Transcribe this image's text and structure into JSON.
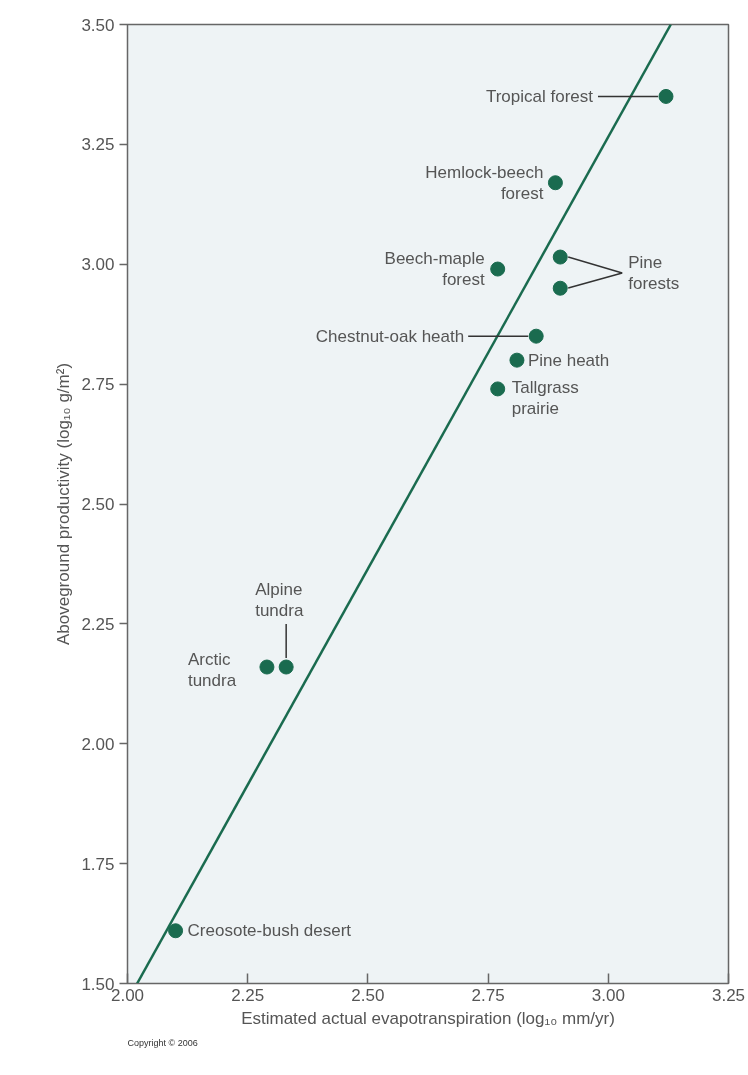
{
  "chart_data": {
    "type": "scatter",
    "xlabel": "Estimated actual evapotranspiration (log₁₀ mm/yr)",
    "ylabel": "Aboveground productivity (log₁₀ g/m²)",
    "xlim": [
      2.0,
      3.25
    ],
    "ylim": [
      1.5,
      3.5
    ],
    "xticks": [
      {
        "value": 2.0,
        "label": "2.00"
      },
      2.25,
      {
        "value": 2.5,
        "label": "2.50"
      },
      2.75,
      {
        "value": 3.0,
        "label": "3.00"
      },
      3.25
    ],
    "yticks": [
      {
        "value": 1.5,
        "label": "1.50"
      },
      1.75,
      {
        "value": 2.0,
        "label": "2.00"
      },
      2.25,
      {
        "value": 2.5,
        "label": "2.50"
      },
      2.75,
      {
        "value": 3.0,
        "label": "3.00"
      },
      3.25,
      {
        "value": 3.5,
        "label": "3.50"
      }
    ],
    "grid": false,
    "series": [
      {
        "marker": "circle",
        "color": "#1a6b4f",
        "x": [
          3.12,
          2.89,
          2.77,
          2.9,
          2.9,
          2.85,
          2.81,
          2.77,
          2.33,
          2.29,
          2.1
        ],
        "values": [
          3.35,
          3.17,
          2.99,
          3.015,
          2.95,
          2.85,
          2.8,
          2.74,
          2.16,
          2.16,
          1.61
        ]
      },
      {
        "type": "line",
        "color": "#1a6b4f",
        "x": [
          2.02,
          3.13
        ],
        "values": [
          1.5,
          3.5
        ]
      }
    ],
    "annotations": [
      {
        "text": "Tropical forest",
        "x": 3.12,
        "y": 3.35
      },
      {
        "text": "Hemlock-beech\nforest",
        "x": 2.89,
        "y": 3.17
      },
      {
        "text": "Beech-maple\nforest",
        "x": 2.77,
        "y": 2.99
      },
      {
        "text": "Pine\nforests",
        "x": 2.9,
        "y": 3.015
      },
      {
        "text": "Chestnut-oak heath",
        "x": 2.85,
        "y": 2.85
      },
      {
        "text": "Pine heath",
        "x": 2.81,
        "y": 2.8
      },
      {
        "text": "Tallgrass\nprairie",
        "x": 2.77,
        "y": 2.74
      },
      {
        "text": "Alpine\ntundra",
        "x": 2.33,
        "y": 2.16
      },
      {
        "text": "Arctic\ntundra",
        "x": 2.29,
        "y": 2.16
      },
      {
        "text": "Creosote-bush desert",
        "x": 2.1,
        "y": 1.61
      },
      "Copyright © 2006"
    ]
  }
}
